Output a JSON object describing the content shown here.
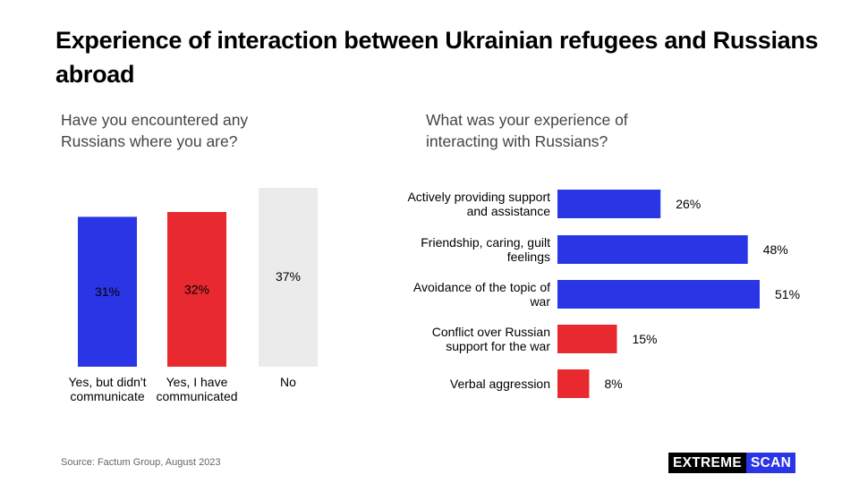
{
  "title": "Experience of interaction between Ukrainian refugees and Russians abroad",
  "source": "Source: Factum Group, August 2023",
  "logo": {
    "part1": "EXTREME",
    "part2": "SCAN"
  },
  "colors": {
    "blue": "#2a35e6",
    "red": "#e8292f",
    "grey": "#ebebeb"
  },
  "chart_data": [
    {
      "type": "bar",
      "title": "Have you encountered any Russians where you are?",
      "categories": [
        [
          "Yes, but didn't",
          "communicate"
        ],
        [
          "Yes, I have",
          "communicated"
        ],
        [
          "No"
        ]
      ],
      "values": [
        31,
        32,
        37
      ],
      "labels": [
        "31%",
        "32%",
        "37%"
      ],
      "colors": [
        "#2a35e6",
        "#e8292f",
        "#ebebeb"
      ],
      "label_colors": [
        "#ffffff",
        "#ffffff",
        "#000000"
      ],
      "ylim": [
        0,
        37
      ]
    },
    {
      "type": "bar",
      "orientation": "horizontal",
      "title": "What was your experience of interacting with Russians?",
      "categories": [
        [
          "Actively providing support",
          "and assistance"
        ],
        [
          "Friendship, caring, guilt",
          "feelings"
        ],
        [
          "Avoidance of the topic of",
          "war"
        ],
        [
          "Conflict over Russian",
          "support for the war"
        ],
        [
          "Verbal aggression"
        ]
      ],
      "values": [
        26,
        48,
        51,
        15,
        8
      ],
      "labels": [
        "26%",
        "48%",
        "51%",
        "15%",
        "8%"
      ],
      "colors": [
        "#2a35e6",
        "#2a35e6",
        "#2a35e6",
        "#e8292f",
        "#e8292f"
      ],
      "xlim": [
        0,
        51
      ]
    }
  ]
}
